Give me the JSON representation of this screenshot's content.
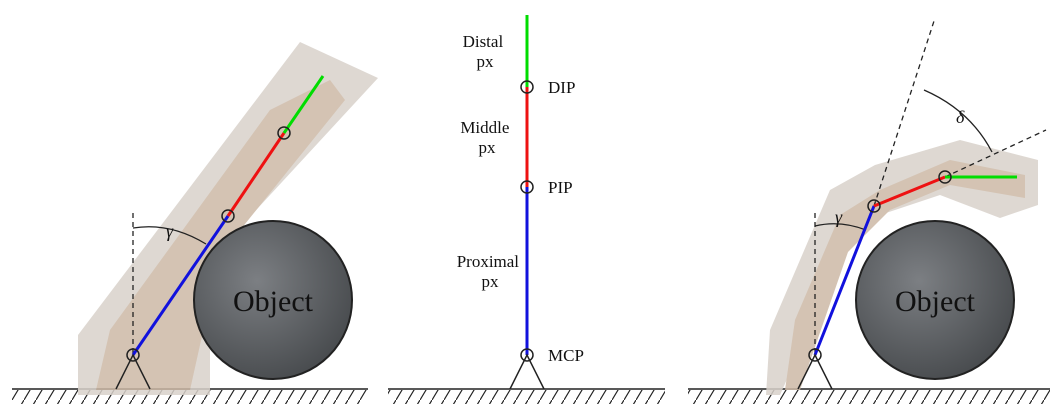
{
  "colors": {
    "distal": "#00dd00",
    "middle": "#ee1111",
    "proximal": "#1111dd",
    "object_fill": "#5c5f62",
    "skin": "#d8cbbb"
  },
  "left_panel": {
    "object_label": "Object",
    "angle_label": "γ"
  },
  "center_panel": {
    "distal_label": [
      "Distal",
      "px"
    ],
    "middle_label": [
      "Middle",
      "px"
    ],
    "proximal_label": [
      "Proximal",
      "px"
    ],
    "joints": {
      "dip": "DIP",
      "pip": "PIP",
      "mcp": "MCP"
    }
  },
  "right_panel": {
    "object_label": "Object",
    "angle_gamma": "γ",
    "angle_delta": "δ"
  }
}
